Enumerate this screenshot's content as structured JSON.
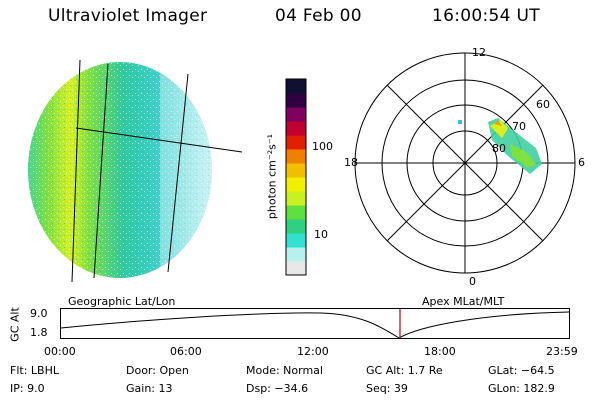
{
  "header": {
    "title": "Ultraviolet Imager",
    "date": "04 Feb 00",
    "time": "16:00:54 UT"
  },
  "colorbar": {
    "label": "photon cm⁻²s⁻¹",
    "ticks": [
      "100",
      "10"
    ],
    "scale": "log",
    "colors": [
      "#e8e8e8",
      "#b8f0f0",
      "#30e0d0",
      "#30d080",
      "#60e040",
      "#c8f020",
      "#f0f000",
      "#f0c000",
      "#f08000",
      "#e02000",
      "#c00030",
      "#800060",
      "#300040",
      "#101030"
    ]
  },
  "left_panel": {
    "caption": "Geographic Lat/Lon"
  },
  "polar_plot": {
    "caption": "Apex MLat/MLT",
    "lat_labels": [
      "60",
      "70",
      "80"
    ],
    "mlt_labels": {
      "top": "12",
      "bottom": "0",
      "left": "18",
      "right": "6"
    }
  },
  "timeline": {
    "ylabel": "GC Alt",
    "y_ticks": [
      "9.0",
      "1.8"
    ],
    "x_ticks": [
      "00:00",
      "06:00",
      "12:00",
      "18:00",
      "23:59"
    ],
    "current_time": "16:00:54",
    "current_fraction": 0.6673
  },
  "info": {
    "flt": "Flt: LBHL",
    "ip": "IP:  9.0",
    "door": "Door: Open",
    "gain": "Gain: 13",
    "mode": "Mode: Normal",
    "dsp": "Dsp:  −34.6",
    "gcalt": "GC Alt: 1.7 Re",
    "seq": "Seq: 39",
    "glat": "GLat: −64.5",
    "glon": "GLon: 182.9"
  }
}
